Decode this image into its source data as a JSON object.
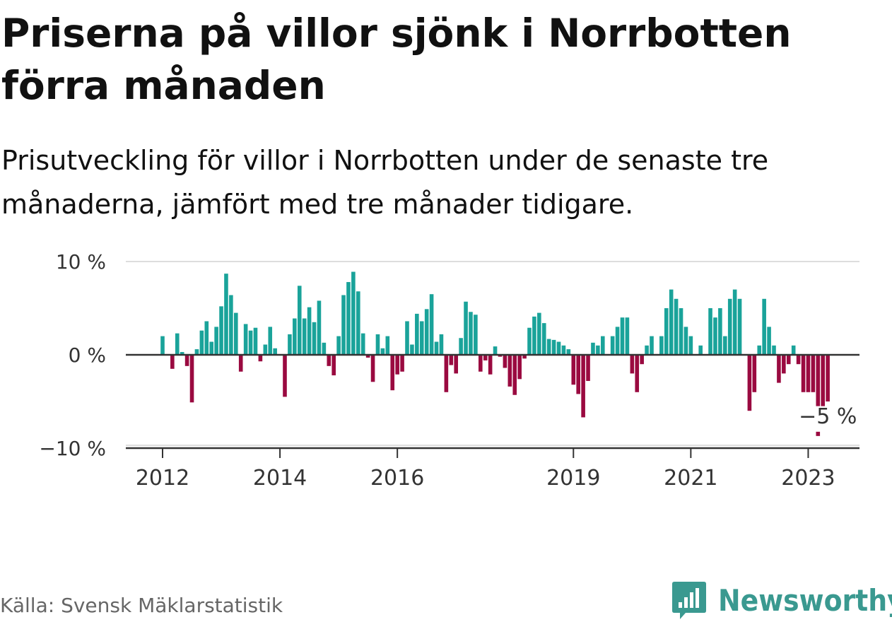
{
  "title": "Priserna på villor sjönk i Norrbotten förra månaden",
  "subtitle": "Prisutveckling för villor i Norrbotten under de senaste tre månaderna, jämfört med tre månader tidigare.",
  "source": "Källa: Svensk Mäklarstatistik",
  "brand": {
    "name": "Newsworthy",
    "icon": "newsworthy-logo-icon"
  },
  "colors": {
    "positive": "#1aa39a",
    "negative": "#9a0a40",
    "axis": "#333333",
    "grid": "#dddddd"
  },
  "chart_data": {
    "type": "bar",
    "start": "2012-01",
    "frequency": "monthly",
    "y_unit": "%",
    "ylim": [
      -10,
      10
    ],
    "y_ticks": [
      10,
      0,
      -10
    ],
    "y_tick_labels": [
      "10 %",
      "0 %",
      "−10 %"
    ],
    "x_tick_labels": [
      {
        "label": "2012",
        "date": "2012-01"
      },
      {
        "label": "2014",
        "date": "2014-01"
      },
      {
        "label": "2016",
        "date": "2016-01"
      },
      {
        "label": "2019",
        "date": "2019-01"
      },
      {
        "label": "2021",
        "date": "2021-01"
      },
      {
        "label": "2023",
        "date": "2023-01"
      }
    ],
    "grid": true,
    "annotation": {
      "label": "−5 %",
      "date": "2023-03",
      "value": -8.7
    },
    "values": [
      2.0,
      null,
      -1.5,
      2.3,
      0.3,
      -1.2,
      -5.1,
      0.6,
      2.6,
      3.6,
      1.4,
      3.0,
      5.2,
      8.7,
      6.4,
      4.5,
      -1.8,
      3.3,
      2.6,
      2.9,
      -0.7,
      1.1,
      3.0,
      0.7,
      null,
      -4.5,
      2.2,
      3.9,
      7.4,
      3.9,
      5.1,
      3.5,
      5.8,
      1.3,
      -1.2,
      -2.2,
      2.0,
      6.4,
      7.8,
      8.9,
      6.8,
      2.3,
      -0.3,
      -2.9,
      2.2,
      0.7,
      2.0,
      -3.8,
      -2.1,
      -1.8,
      3.6,
      1.1,
      4.4,
      3.6,
      4.9,
      6.5,
      1.4,
      2.2,
      -4.0,
      -1.1,
      -2.0,
      1.8,
      5.7,
      4.6,
      4.3,
      -1.8,
      -0.6,
      -2.1,
      0.9,
      -0.2,
      -1.4,
      -3.4,
      -4.3,
      -2.6,
      -0.4,
      2.9,
      4.1,
      4.5,
      3.4,
      1.7,
      1.6,
      1.4,
      1.0,
      0.6,
      -3.2,
      -4.2,
      -6.7,
      -2.8,
      1.3,
      1.0,
      2.0,
      null,
      2.0,
      3.0,
      4.0,
      4.0,
      -2.0,
      -4.0,
      -1.0,
      1.0,
      2.0,
      null,
      2.0,
      5.0,
      7.0,
      6.0,
      5.0,
      3.0,
      2.0,
      null,
      1.0,
      null,
      5.0,
      4.0,
      5.0,
      2.0,
      6.0,
      7.0,
      6.0,
      null,
      -6.0,
      -4.0,
      1.0,
      6.0,
      3.0,
      1.0,
      -3.0,
      -2.0,
      -1.0,
      1.0,
      -1.0,
      -4.0,
      -4.0,
      -4.0,
      -5.5,
      -5.5,
      -5.0
    ]
  }
}
